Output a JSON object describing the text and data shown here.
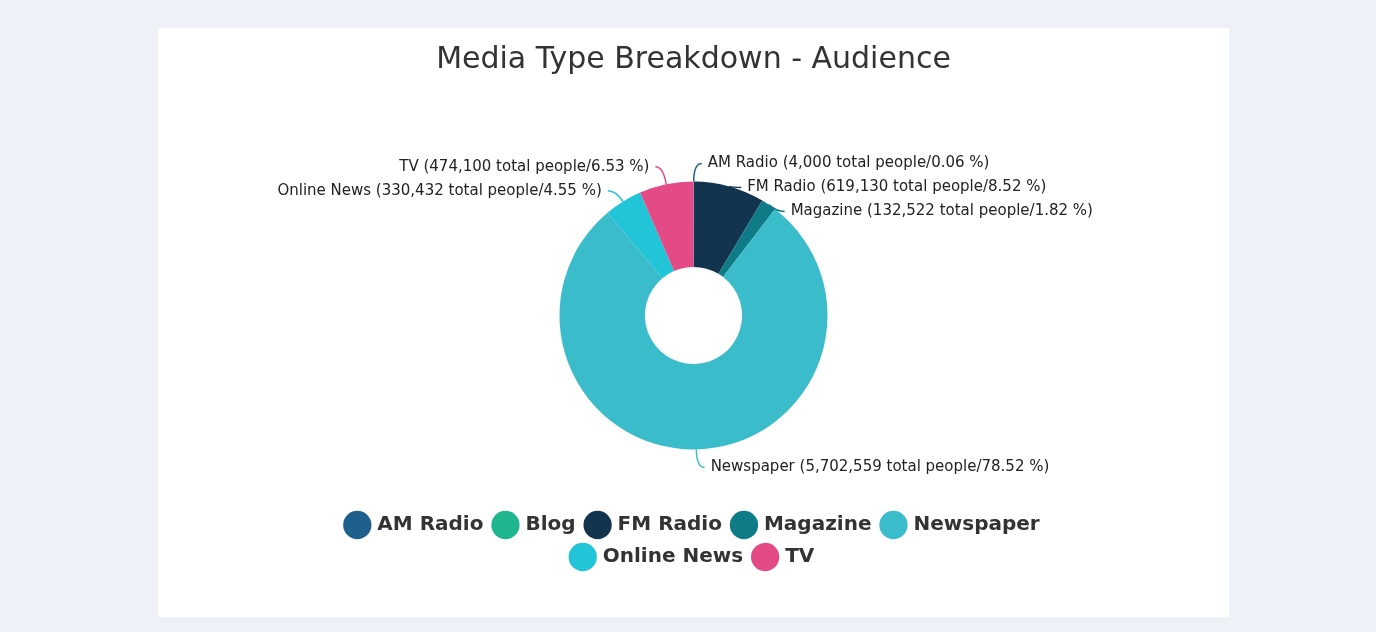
{
  "chart_data": {
    "type": "donut",
    "title": "Media Type Breakdown - Audience",
    "categories": [
      "AM Radio",
      "Blog",
      "FM Radio",
      "Magazine",
      "Newspaper",
      "Online News",
      "TV"
    ],
    "values": [
      4000,
      0,
      619130,
      132522,
      5702559,
      330432,
      474100
    ],
    "colors": [
      "#1f5f8b",
      "#1fb58f",
      "#12344f",
      "#0e7c86",
      "#3bbccb",
      "#22c4d8",
      "#e34a86"
    ],
    "value_labels": [
      "AM Radio (4,000 total people/0.06 %)",
      null,
      "FM Radio (619,130 total people/8.52 %)",
      "Magazine (132,522 total people/1.82 %)",
      "Newspaper (5,702,559 total people/78.52 %)",
      "Online News (330,432 total people/4.55 %)",
      "TV (474,100 total people/6.53 %)"
    ],
    "legend": "bottom"
  }
}
